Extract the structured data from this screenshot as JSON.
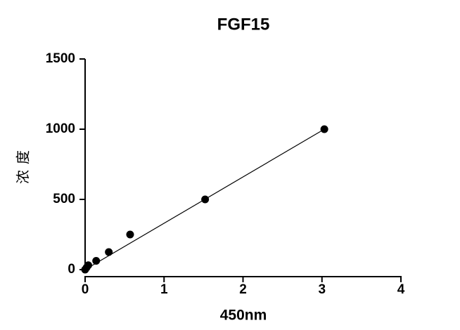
{
  "chart_data": {
    "type": "scatter",
    "title": "FGF15",
    "x_label": "450nm",
    "y_label": "浓度",
    "x": [
      0,
      0.02,
      0.04,
      0.14,
      0.3,
      0.57,
      1.52,
      3.03
    ],
    "values": [
      0,
      15.6,
      31.25,
      62.5,
      125,
      250,
      500,
      1000
    ],
    "color": "#000000",
    "fit_line": {
      "x": [
        0,
        3.03
      ],
      "values": [
        0,
        1000
      ]
    },
    "xlim": [
      0,
      4
    ],
    "xticks": [
      0,
      1,
      2,
      3,
      4
    ],
    "ylim": [
      0,
      1500
    ],
    "yticks": [
      0,
      500,
      1000,
      1500
    ]
  }
}
